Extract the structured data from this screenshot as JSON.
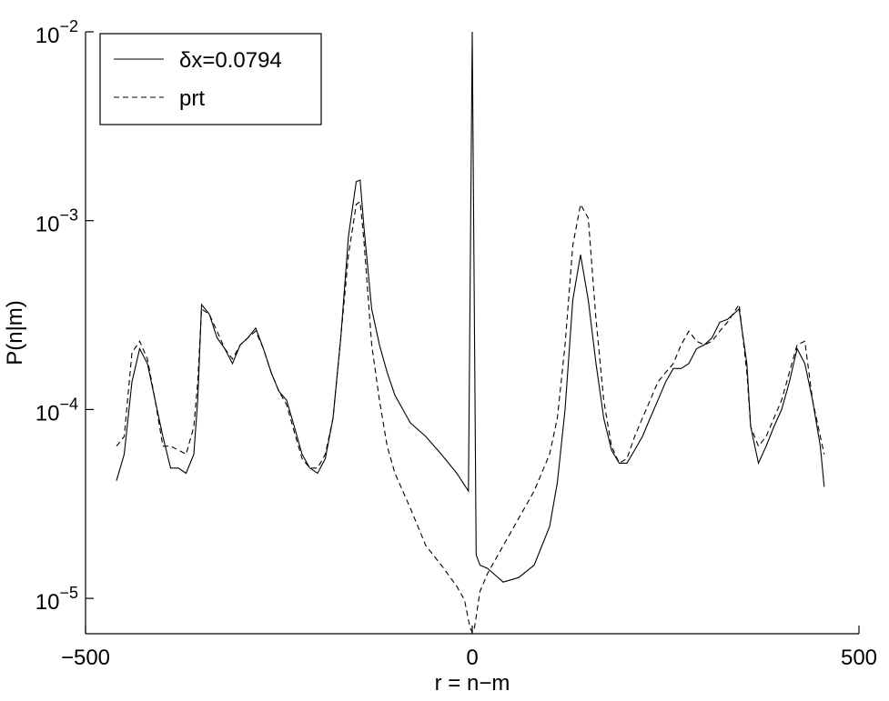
{
  "chart_data": {
    "type": "line",
    "xlabel": "r = n−m",
    "ylabel": "P(n|m)",
    "xlim": [
      -500,
      500
    ],
    "xticks": [
      {
        "value": -500,
        "label": "−500"
      },
      0,
      500
    ],
    "ylim": [
      6.5e-06,
      0.01
    ],
    "yticks": [
      {
        "value": 0.01,
        "label": "10−2"
      },
      {
        "value": 0.001,
        "label": "10−3"
      },
      {
        "value": 0.0001,
        "label": "10−4"
      },
      {
        "value": 1e-05,
        "label": "10−5"
      }
    ],
    "yscale": "log",
    "grid": false,
    "legend": "upper left",
    "series": [
      {
        "name": "δx=0.0794",
        "color": "#000000",
        "linestyle": "solid",
        "x": [
          -460,
          -450,
          -440,
          -430,
          -420,
          -410,
          -400,
          -390,
          -380,
          -370,
          -360,
          -355,
          -350,
          -340,
          -330,
          -320,
          -310,
          -300,
          -290,
          -280,
          -270,
          -260,
          -250,
          -240,
          -230,
          -220,
          -210,
          -200,
          -190,
          -180,
          -170,
          -160,
          -150,
          -145,
          -140,
          -130,
          -120,
          -110,
          -100,
          -80,
          -60,
          -40,
          -20,
          -5,
          0,
          5,
          10,
          20,
          40,
          60,
          80,
          100,
          110,
          120,
          130,
          140,
          150,
          160,
          170,
          180,
          190,
          200,
          210,
          220,
          230,
          240,
          250,
          260,
          270,
          280,
          290,
          300,
          310,
          320,
          330,
          345,
          355,
          360,
          370,
          380,
          390,
          400,
          410,
          420,
          430,
          440,
          450,
          455
        ],
        "values": [
          4.2e-05,
          5.8e-05,
          0.00014,
          0.00021,
          0.000175,
          0.000112,
          7.2e-05,
          4.9e-05,
          4.9e-05,
          4.6e-05,
          5.8e-05,
          0.000112,
          0.00036,
          0.00032,
          0.00024,
          0.00021,
          0.000175,
          0.00022,
          0.00024,
          0.00027,
          0.00021,
          0.000157,
          0.000125,
          0.000112,
          8.1e-05,
          5.8e-05,
          4.9e-05,
          4.6e-05,
          5.5e-05,
          9e-05,
          0.00024,
          0.00083,
          0.00161,
          0.00164,
          0.00092,
          0.00034,
          0.00022,
          0.000157,
          0.000119,
          8.5e-05,
          7.2e-05,
          5.8e-05,
          4.6e-05,
          3.7e-05,
          0.01,
          1.7e-05,
          1.5e-05,
          1.44e-05,
          1.22e-05,
          1.29e-05,
          1.5e-05,
          2.4e-05,
          4.1e-05,
          0.0001,
          0.00038,
          0.00066,
          0.00038,
          0.000175,
          9e-05,
          6.1e-05,
          5.2e-05,
          5.2e-05,
          6.1e-05,
          7.2e-05,
          9e-05,
          0.000112,
          0.00014,
          0.000165,
          0.000165,
          0.000175,
          0.00021,
          0.00022,
          0.00024,
          0.00029,
          0.0003,
          0.00034,
          0.000175,
          8.1e-05,
          5.2e-05,
          6.4e-05,
          8.1e-05,
          0.0001,
          0.00014,
          0.00021,
          0.000175,
          0.000112,
          6.4e-05,
          3.9e-05
        ]
      },
      {
        "name": "prt",
        "color": "#000000",
        "linestyle": "dashed",
        "x": [
          -460,
          -450,
          -440,
          -430,
          -420,
          -410,
          -400,
          -390,
          -380,
          -370,
          -360,
          -355,
          -350,
          -340,
          -330,
          -320,
          -310,
          -300,
          -290,
          -280,
          -270,
          -260,
          -250,
          -240,
          -230,
          -220,
          -210,
          -200,
          -190,
          -180,
          -170,
          -160,
          -150,
          -145,
          -140,
          -130,
          -120,
          -110,
          -100,
          -80,
          -60,
          -40,
          -20,
          -10,
          -3,
          0,
          3,
          10,
          20,
          40,
          60,
          80,
          100,
          110,
          120,
          130,
          140,
          150,
          160,
          170,
          180,
          190,
          200,
          210,
          220,
          230,
          240,
          250,
          260,
          270,
          280,
          290,
          300,
          310,
          320,
          330,
          345,
          355,
          360,
          370,
          380,
          390,
          400,
          410,
          420,
          430,
          440,
          450,
          455
        ],
        "values": [
          6.4e-05,
          7.2e-05,
          0.0002,
          0.00023,
          0.000185,
          0.000112,
          6.4e-05,
          6.4e-05,
          6.1e-05,
          5.8e-05,
          8.1e-05,
          0.00014,
          0.00034,
          0.00032,
          0.00026,
          0.00021,
          0.000185,
          0.00022,
          0.00024,
          0.00026,
          0.00021,
          0.000157,
          0.000125,
          0.000106,
          7.6e-05,
          5.5e-05,
          4.9e-05,
          4.9e-05,
          5.8e-05,
          9e-05,
          0.00024,
          0.00066,
          0.00122,
          0.00126,
          0.00078,
          0.00022,
          0.000112,
          6.4e-05,
          4.6e-05,
          3e-05,
          1.9e-05,
          1.5e-05,
          1.16e-05,
          9.8e-06,
          7e-06,
          6.6e-06,
          7e-06,
          1.09e-05,
          1.36e-05,
          1.9e-05,
          2.65e-05,
          3.7e-05,
          5.8e-05,
          9e-05,
          0.00022,
          0.00074,
          0.00122,
          0.00103,
          0.0003,
          0.000112,
          6.4e-05,
          5.2e-05,
          5.5e-05,
          7.2e-05,
          9e-05,
          0.000112,
          0.00014,
          0.000157,
          0.000175,
          0.00022,
          0.00026,
          0.00023,
          0.00022,
          0.00023,
          0.00026,
          0.00029,
          0.00036,
          0.000157,
          8.1e-05,
          6.4e-05,
          7.2e-05,
          9e-05,
          0.000112,
          0.000157,
          0.00022,
          0.00023,
          0.000112,
          7.2e-05,
          5.8e-05
        ]
      }
    ]
  }
}
